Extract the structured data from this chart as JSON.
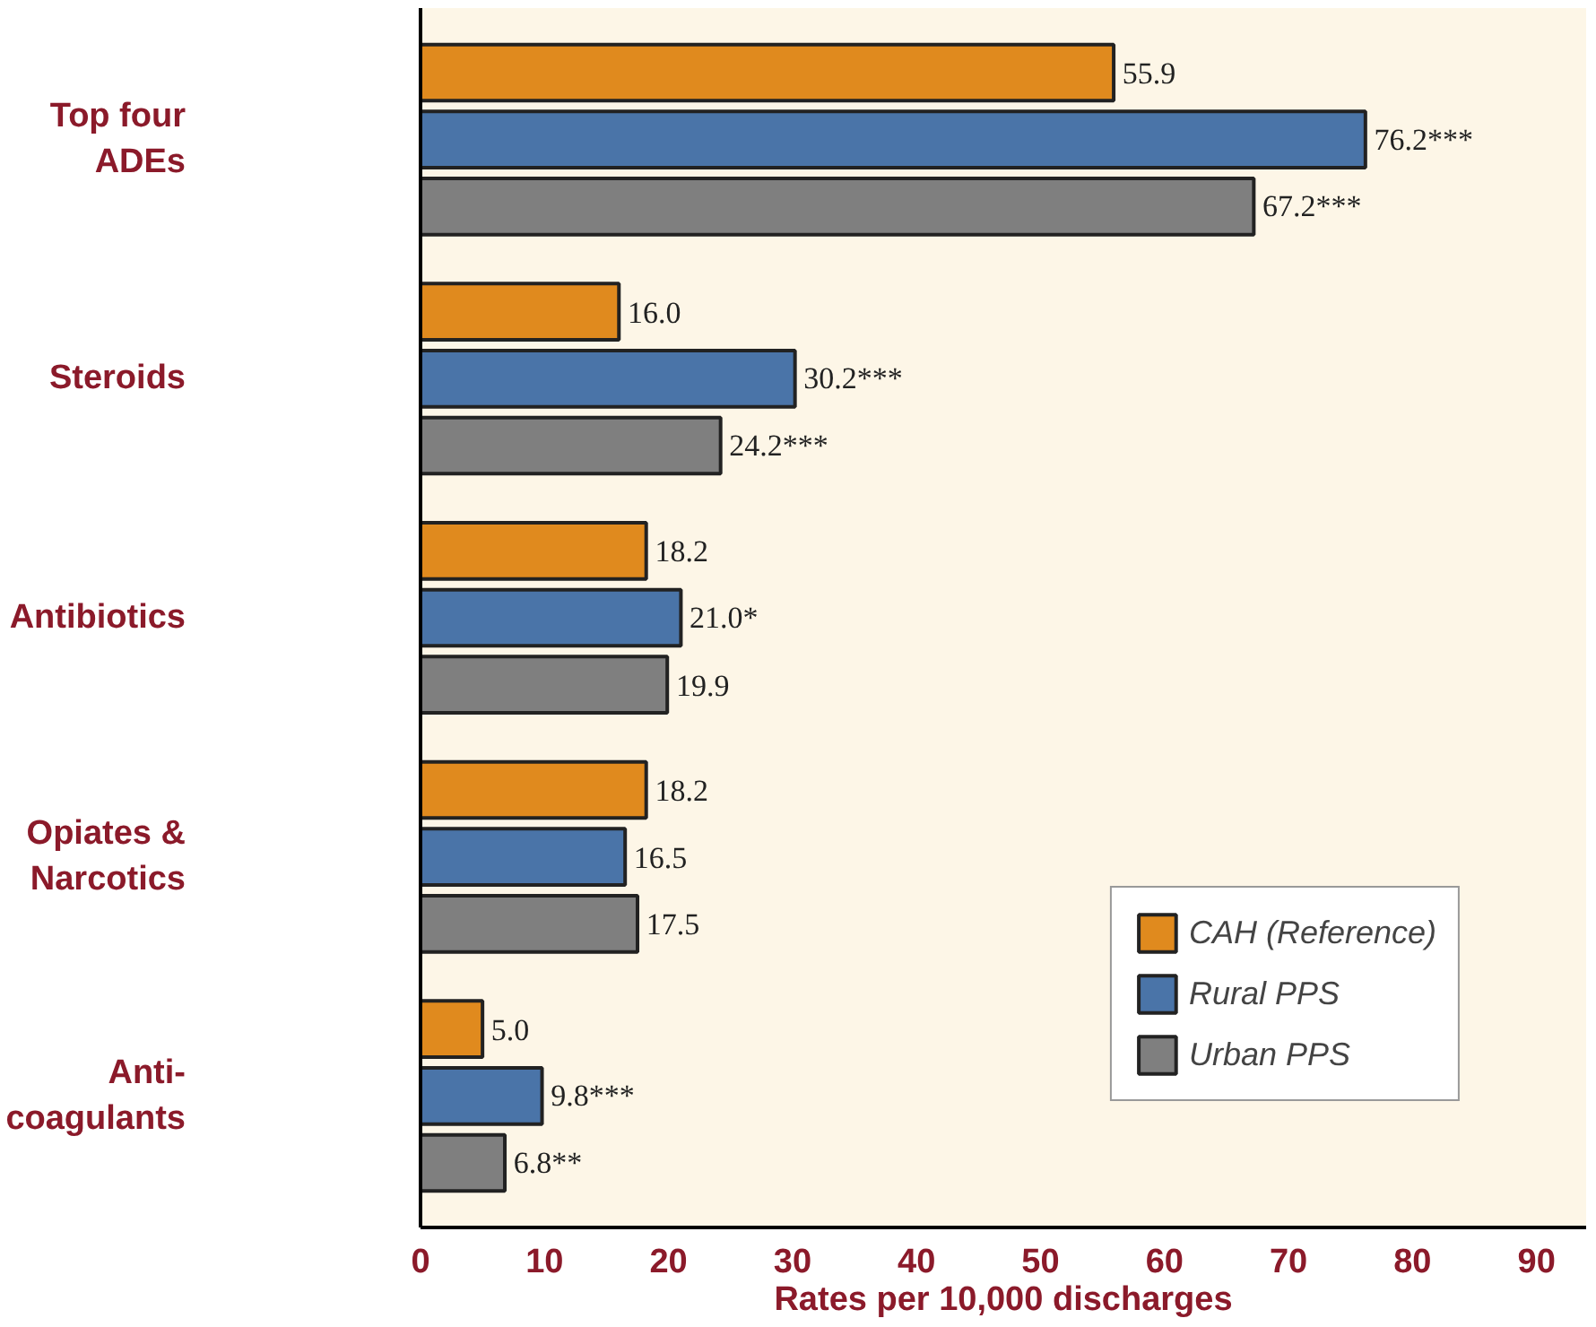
{
  "chart_data": {
    "type": "bar",
    "orientation": "horizontal",
    "xlabel": "Rates per 10,000 discharges",
    "categories": [
      "Top four\nADEs",
      "Steroids",
      "Antibiotics",
      "Opiates &\nNarcotics",
      "Anti-\ncoagulants"
    ],
    "series": [
      {
        "name": "CAH (Reference)",
        "color": "#e08a1e",
        "values": [
          55.9,
          16.0,
          18.2,
          18.2,
          5.0
        ],
        "value_labels": [
          "55.9",
          "16.0",
          "18.2",
          "18.2",
          "5.0"
        ]
      },
      {
        "name": "Rural PPS",
        "color": "#4a74a8",
        "values": [
          76.2,
          30.2,
          21.0,
          16.5,
          9.8
        ],
        "value_labels": [
          "76.2***",
          "30.2***",
          "21.0*",
          "16.5",
          "9.8***"
        ]
      },
      {
        "name": "Urban PPS",
        "color": "#7f7f7f",
        "values": [
          67.2,
          24.2,
          19.9,
          17.5,
          6.8
        ],
        "value_labels": [
          "67.2***",
          "24.2***",
          "19.9",
          "17.5",
          "6.8**"
        ]
      }
    ],
    "xlim": [
      0,
      94
    ],
    "xticks": [
      0,
      10,
      20,
      30,
      40,
      50,
      60,
      70,
      80,
      90
    ],
    "grid": false,
    "legend": "bottom right"
  }
}
